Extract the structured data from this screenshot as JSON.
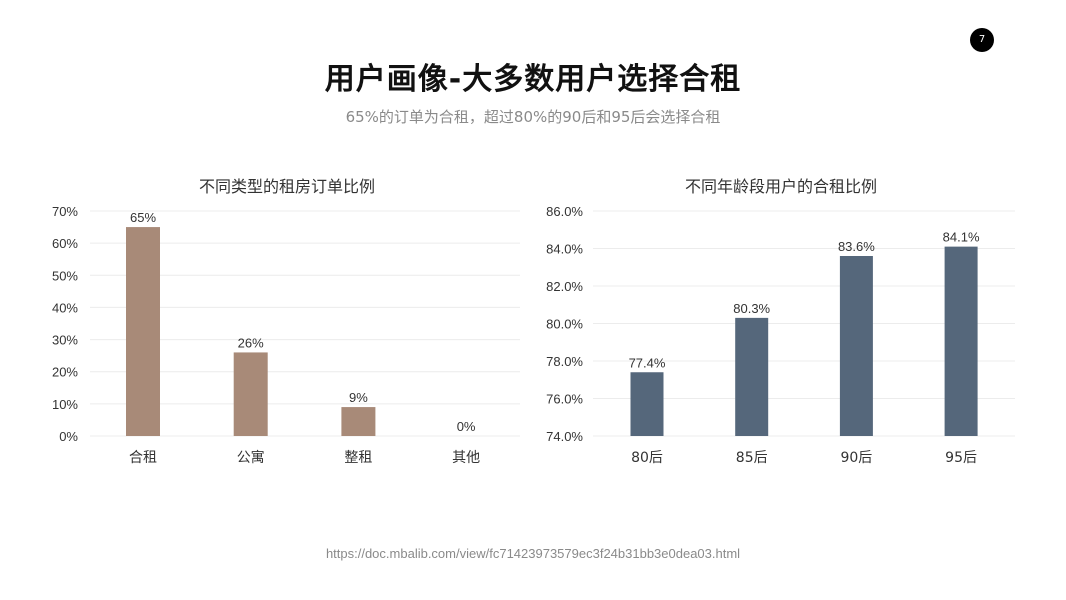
{
  "page_number": "7",
  "title": "用户画像-大多数用户选择合租",
  "subtitle": "65%的订单为合租，超过80%的90后和95后会选择合租",
  "source_url": "https://doc.mbalib.com/view/fc71423973579ec3f24b31bb3e0dea03.html",
  "chart_data": [
    {
      "type": "bar",
      "title": "不同类型的租房订单比例",
      "categories": [
        "合租",
        "公寓",
        "整租",
        "其他"
      ],
      "values": [
        65,
        26,
        9,
        0
      ],
      "data_labels": [
        "65%",
        "26%",
        "9%",
        "0%"
      ],
      "ylim": [
        0,
        70
      ],
      "yticks": [
        "0%",
        "10%",
        "20%",
        "30%",
        "40%",
        "50%",
        "60%",
        "70%"
      ],
      "ytick_values": [
        0,
        10,
        20,
        30,
        40,
        50,
        60,
        70
      ],
      "color": "#a88a78",
      "grid": true
    },
    {
      "type": "bar",
      "title": "不同年龄段用户的合租比例",
      "categories": [
        "80后",
        "85后",
        "90后",
        "95后"
      ],
      "values": [
        77.4,
        80.3,
        83.6,
        84.1
      ],
      "data_labels": [
        "77.4%",
        "80.3%",
        "83.6%",
        "84.1%"
      ],
      "ylim": [
        74,
        86
      ],
      "yticks": [
        "74.0%",
        "76.0%",
        "78.0%",
        "80.0%",
        "82.0%",
        "84.0%",
        "86.0%"
      ],
      "ytick_values": [
        74,
        76,
        78,
        80,
        82,
        84,
        86
      ],
      "color": "#55677b",
      "grid": true
    }
  ]
}
